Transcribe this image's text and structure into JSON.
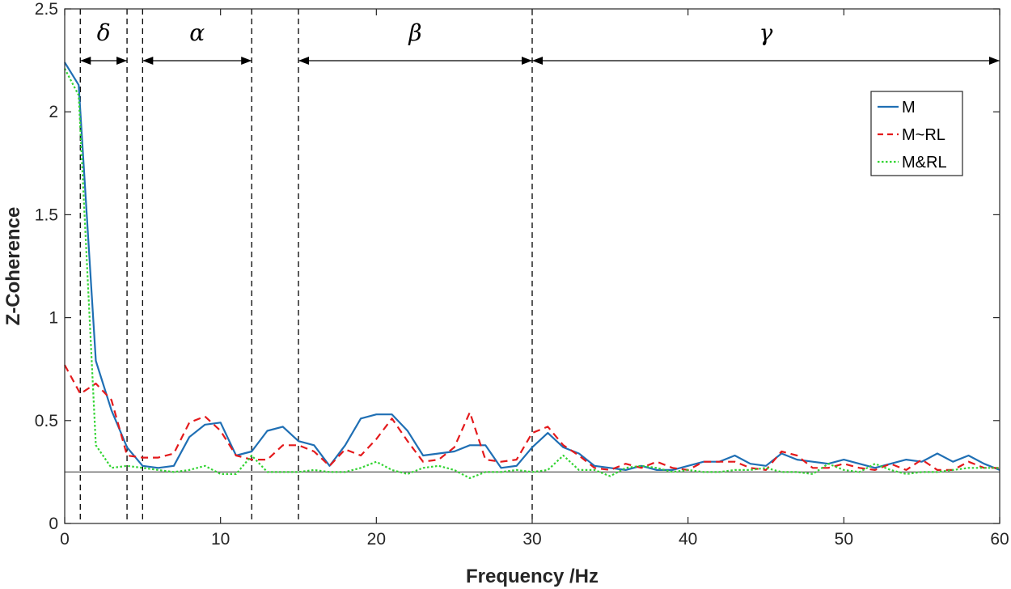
{
  "chart_data": {
    "type": "line",
    "title": "",
    "xlabel": "Frequency /Hz",
    "ylabel": "Z-Coherence",
    "xlim": [
      0,
      60
    ],
    "ylim": [
      0,
      2.5
    ],
    "x_ticks": [
      "0",
      "10",
      "20",
      "30",
      "40",
      "50",
      "60"
    ],
    "y_ticks": [
      "0",
      "0.5",
      "1",
      "1.5",
      "2",
      "2.5"
    ],
    "legend_position": "top-right",
    "reference_line_y": 0.25,
    "bands": [
      {
        "label": "δ",
        "start": 1,
        "end": 4
      },
      {
        "label": "α",
        "start": 5,
        "end": 12
      },
      {
        "label": "β",
        "start": 15,
        "end": 30
      },
      {
        "label": "γ",
        "start": 30,
        "end": 60
      }
    ],
    "band_boundaries": [
      1,
      4,
      5,
      12,
      15,
      30
    ],
    "series": [
      {
        "name": "M",
        "color": "#1f6fb4",
        "style": "solid",
        "points": [
          [
            0,
            2.24
          ],
          [
            0.9,
            2.13
          ],
          [
            2,
            0.79
          ],
          [
            3,
            0.55
          ],
          [
            4,
            0.37
          ],
          [
            5,
            0.28
          ],
          [
            6,
            0.27
          ],
          [
            7,
            0.28
          ],
          [
            8,
            0.42
          ],
          [
            9,
            0.48
          ],
          [
            10,
            0.49
          ],
          [
            11,
            0.33
          ],
          [
            12,
            0.35
          ],
          [
            13,
            0.45
          ],
          [
            14,
            0.47
          ],
          [
            15,
            0.4
          ],
          [
            16,
            0.38
          ],
          [
            17,
            0.28
          ],
          [
            18,
            0.38
          ],
          [
            19,
            0.51
          ],
          [
            20,
            0.53
          ],
          [
            21,
            0.53
          ],
          [
            22,
            0.45
          ],
          [
            23,
            0.33
          ],
          [
            24,
            0.34
          ],
          [
            25,
            0.35
          ],
          [
            26,
            0.38
          ],
          [
            27,
            0.38
          ],
          [
            28,
            0.27
          ],
          [
            29,
            0.28
          ],
          [
            30,
            0.37
          ],
          [
            31,
            0.44
          ],
          [
            32,
            0.37
          ],
          [
            33,
            0.34
          ],
          [
            34,
            0.28
          ],
          [
            35,
            0.27
          ],
          [
            36,
            0.26
          ],
          [
            37,
            0.28
          ],
          [
            38,
            0.26
          ],
          [
            39,
            0.26
          ],
          [
            40,
            0.28
          ],
          [
            41,
            0.3
          ],
          [
            42,
            0.3
          ],
          [
            43,
            0.33
          ],
          [
            44,
            0.29
          ],
          [
            45,
            0.28
          ],
          [
            46,
            0.34
          ],
          [
            47,
            0.31
          ],
          [
            48,
            0.3
          ],
          [
            49,
            0.29
          ],
          [
            50,
            0.31
          ],
          [
            51,
            0.29
          ],
          [
            52,
            0.27
          ],
          [
            53,
            0.29
          ],
          [
            54,
            0.31
          ],
          [
            55,
            0.3
          ],
          [
            56,
            0.34
          ],
          [
            57,
            0.3
          ],
          [
            58,
            0.33
          ],
          [
            59,
            0.29
          ],
          [
            60,
            0.26
          ]
        ]
      },
      {
        "name": "M~RL",
        "color": "#e41a1c",
        "style": "dashed",
        "points": [
          [
            0,
            0.77
          ],
          [
            1,
            0.63
          ],
          [
            2,
            0.68
          ],
          [
            3,
            0.6
          ],
          [
            4,
            0.33
          ],
          [
            5,
            0.32
          ],
          [
            6,
            0.32
          ],
          [
            7,
            0.34
          ],
          [
            8,
            0.49
          ],
          [
            9,
            0.52
          ],
          [
            10,
            0.45
          ],
          [
            11,
            0.33
          ],
          [
            12,
            0.31
          ],
          [
            13,
            0.31
          ],
          [
            14,
            0.38
          ],
          [
            15,
            0.38
          ],
          [
            16,
            0.35
          ],
          [
            17,
            0.28
          ],
          [
            18,
            0.36
          ],
          [
            19,
            0.33
          ],
          [
            20,
            0.41
          ],
          [
            21,
            0.51
          ],
          [
            22,
            0.4
          ],
          [
            23,
            0.3
          ],
          [
            24,
            0.31
          ],
          [
            25,
            0.37
          ],
          [
            26,
            0.54
          ],
          [
            27,
            0.31
          ],
          [
            28,
            0.3
          ],
          [
            29,
            0.31
          ],
          [
            30,
            0.44
          ],
          [
            31,
            0.47
          ],
          [
            32,
            0.38
          ],
          [
            33,
            0.33
          ],
          [
            34,
            0.27
          ],
          [
            35,
            0.26
          ],
          [
            36,
            0.29
          ],
          [
            37,
            0.27
          ],
          [
            38,
            0.3
          ],
          [
            39,
            0.27
          ],
          [
            40,
            0.26
          ],
          [
            41,
            0.3
          ],
          [
            42,
            0.3
          ],
          [
            43,
            0.3
          ],
          [
            44,
            0.27
          ],
          [
            45,
            0.26
          ],
          [
            46,
            0.35
          ],
          [
            47,
            0.33
          ],
          [
            48,
            0.27
          ],
          [
            49,
            0.27
          ],
          [
            50,
            0.29
          ],
          [
            51,
            0.27
          ],
          [
            52,
            0.26
          ],
          [
            53,
            0.29
          ],
          [
            54,
            0.26
          ],
          [
            55,
            0.31
          ],
          [
            56,
            0.26
          ],
          [
            57,
            0.26
          ],
          [
            58,
            0.3
          ],
          [
            59,
            0.27
          ],
          [
            60,
            0.27
          ]
        ]
      },
      {
        "name": "M&RL",
        "color": "#33d433",
        "style": "dotted",
        "points": [
          [
            0,
            2.21
          ],
          [
            0.9,
            2.08
          ],
          [
            2,
            0.38
          ],
          [
            3,
            0.27
          ],
          [
            4,
            0.28
          ],
          [
            5,
            0.27
          ],
          [
            6,
            0.26
          ],
          [
            7,
            0.25
          ],
          [
            8,
            0.26
          ],
          [
            9,
            0.28
          ],
          [
            10,
            0.24
          ],
          [
            11,
            0.24
          ],
          [
            12,
            0.33
          ],
          [
            13,
            0.25
          ],
          [
            14,
            0.25
          ],
          [
            15,
            0.25
          ],
          [
            16,
            0.26
          ],
          [
            17,
            0.25
          ],
          [
            18,
            0.25
          ],
          [
            19,
            0.27
          ],
          [
            20,
            0.3
          ],
          [
            21,
            0.26
          ],
          [
            22,
            0.24
          ],
          [
            23,
            0.27
          ],
          [
            24,
            0.28
          ],
          [
            25,
            0.26
          ],
          [
            26,
            0.22
          ],
          [
            27,
            0.25
          ],
          [
            28,
            0.25
          ],
          [
            29,
            0.26
          ],
          [
            30,
            0.25
          ],
          [
            31,
            0.26
          ],
          [
            32,
            0.33
          ],
          [
            33,
            0.26
          ],
          [
            34,
            0.26
          ],
          [
            35,
            0.23
          ],
          [
            36,
            0.27
          ],
          [
            37,
            0.28
          ],
          [
            38,
            0.27
          ],
          [
            39,
            0.25
          ],
          [
            40,
            0.26
          ],
          [
            41,
            0.25
          ],
          [
            42,
            0.25
          ],
          [
            43,
            0.26
          ],
          [
            44,
            0.26
          ],
          [
            45,
            0.27
          ],
          [
            46,
            0.25
          ],
          [
            47,
            0.25
          ],
          [
            48,
            0.24
          ],
          [
            49,
            0.29
          ],
          [
            50,
            0.26
          ],
          [
            51,
            0.25
          ],
          [
            52,
            0.29
          ],
          [
            53,
            0.26
          ],
          [
            54,
            0.24
          ],
          [
            55,
            0.25
          ],
          [
            56,
            0.25
          ],
          [
            57,
            0.26
          ],
          [
            58,
            0.27
          ],
          [
            59,
            0.27
          ],
          [
            60,
            0.27
          ]
        ]
      }
    ]
  }
}
